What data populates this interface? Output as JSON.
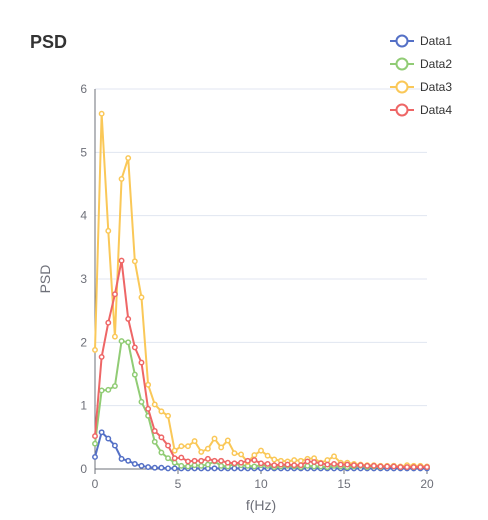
{
  "chart_data": {
    "type": "line",
    "title": "PSD",
    "xlabel": "f(Hz)",
    "ylabel": "PSD",
    "xlim": [
      0,
      20
    ],
    "ylim": [
      0,
      6
    ],
    "xticks": [
      "0",
      "5",
      "10",
      "15",
      "20"
    ],
    "yticks": [
      "0",
      "1",
      "2",
      "3",
      "4",
      "5",
      "6"
    ],
    "grid": true,
    "legend_position": "top-right",
    "series": [
      {
        "name": "Data1",
        "color": "#5470c6",
        "x": [
          0,
          0.4,
          0.8,
          1.2,
          1.6,
          2.0,
          2.4,
          2.8,
          3.2,
          3.6,
          4.0,
          4.4,
          4.8,
          5.2,
          5.6,
          6.0,
          6.4,
          6.8,
          7.2,
          7.6,
          8.0,
          8.4,
          8.8,
          9.2,
          9.6,
          10.0,
          10.4,
          10.8,
          11.2,
          11.6,
          12.0,
          12.4,
          12.8,
          13.2,
          13.6,
          14.0,
          14.4,
          14.8,
          15.2,
          15.6,
          16.0,
          16.4,
          16.8,
          17.2,
          17.6,
          18.0,
          18.4,
          18.8,
          19.2,
          19.6,
          20.0
        ],
        "y": [
          0.19,
          0.58,
          0.48,
          0.37,
          0.16,
          0.13,
          0.08,
          0.05,
          0.03,
          0.02,
          0.02,
          0.01,
          0.01,
          0.01,
          0.01,
          0.01,
          0.01,
          0.01,
          0.01,
          0.01,
          0.01,
          0.01,
          0.01,
          0.01,
          0.01,
          0.01,
          0.01,
          0.01,
          0.01,
          0.01,
          0.01,
          0.01,
          0.01,
          0.01,
          0.01,
          0.01,
          0.01,
          0.01,
          0.01,
          0.01,
          0.01,
          0.01,
          0.01,
          0.01,
          0.01,
          0.01,
          0.01,
          0.01,
          0.01,
          0.01,
          0.01
        ]
      },
      {
        "name": "Data2",
        "color": "#91cc75",
        "x": [
          0,
          0.4,
          0.8,
          1.2,
          1.6,
          2.0,
          2.4,
          2.8,
          3.2,
          3.6,
          4.0,
          4.4,
          4.8,
          5.2,
          5.6,
          6.0,
          6.4,
          6.8,
          7.2,
          7.6,
          8.0,
          8.4,
          8.8,
          9.2,
          9.6,
          10.0,
          10.4,
          10.8,
          11.2,
          11.6,
          12.0,
          12.4,
          12.8,
          13.2,
          13.6,
          14.0,
          14.4,
          14.8,
          15.2,
          15.6,
          16.0,
          16.4,
          16.8,
          17.2,
          17.6,
          18.0,
          18.4,
          18.8,
          19.2,
          19.6,
          20.0
        ],
        "y": [
          0.4,
          1.24,
          1.25,
          1.31,
          2.02,
          2.0,
          1.49,
          1.06,
          0.84,
          0.43,
          0.26,
          0.17,
          0.1,
          0.05,
          0.04,
          0.06,
          0.05,
          0.07,
          0.12,
          0.05,
          0.04,
          0.08,
          0.06,
          0.05,
          0.04,
          0.06,
          0.05,
          0.03,
          0.04,
          0.05,
          0.04,
          0.03,
          0.05,
          0.04,
          0.04,
          0.03,
          0.05,
          0.04,
          0.03,
          0.04,
          0.05,
          0.03,
          0.04,
          0.03,
          0.04,
          0.05,
          0.03,
          0.04,
          0.03,
          0.04,
          0.03
        ]
      },
      {
        "name": "Data3",
        "color": "#fac858",
        "x": [
          0,
          0.4,
          0.8,
          1.2,
          1.6,
          2.0,
          2.4,
          2.8,
          3.2,
          3.6,
          4.0,
          4.4,
          4.8,
          5.2,
          5.6,
          6.0,
          6.4,
          6.8,
          7.2,
          7.6,
          8.0,
          8.4,
          8.8,
          9.2,
          9.6,
          10.0,
          10.4,
          10.8,
          11.2,
          11.6,
          12.0,
          12.4,
          12.8,
          13.2,
          13.6,
          14.0,
          14.4,
          14.8,
          15.2,
          15.6,
          16.0,
          16.4,
          16.8,
          17.2,
          17.6,
          18.0,
          18.4,
          18.8,
          19.2,
          19.6,
          20.0
        ],
        "y": [
          1.88,
          5.61,
          3.76,
          2.09,
          4.58,
          4.91,
          3.28,
          2.71,
          1.33,
          1.02,
          0.91,
          0.84,
          0.29,
          0.36,
          0.36,
          0.44,
          0.27,
          0.32,
          0.48,
          0.34,
          0.45,
          0.25,
          0.23,
          0.11,
          0.22,
          0.29,
          0.21,
          0.15,
          0.13,
          0.12,
          0.14,
          0.13,
          0.16,
          0.17,
          0.1,
          0.14,
          0.2,
          0.1,
          0.1,
          0.08,
          0.07,
          0.06,
          0.06,
          0.05,
          0.05,
          0.05,
          0.04,
          0.06,
          0.05,
          0.05,
          0.04
        ]
      },
      {
        "name": "Data4",
        "color": "#ee6666",
        "x": [
          0,
          0.4,
          0.8,
          1.2,
          1.6,
          2.0,
          2.4,
          2.8,
          3.2,
          3.6,
          4.0,
          4.4,
          4.8,
          5.2,
          5.6,
          6.0,
          6.4,
          6.8,
          7.2,
          7.6,
          8.0,
          8.4,
          8.8,
          9.2,
          9.6,
          10.0,
          10.4,
          10.8,
          11.2,
          11.6,
          12.0,
          12.4,
          12.8,
          13.2,
          13.6,
          14.0,
          14.4,
          14.8,
          15.2,
          15.6,
          16.0,
          16.4,
          16.8,
          17.2,
          17.6,
          18.0,
          18.4,
          18.8,
          19.2,
          19.6,
          20.0
        ],
        "y": [
          0.52,
          1.77,
          2.31,
          2.76,
          3.29,
          2.37,
          1.92,
          1.68,
          0.95,
          0.6,
          0.5,
          0.37,
          0.17,
          0.18,
          0.12,
          0.13,
          0.13,
          0.16,
          0.13,
          0.13,
          0.1,
          0.09,
          0.1,
          0.13,
          0.14,
          0.09,
          0.08,
          0.06,
          0.07,
          0.07,
          0.06,
          0.06,
          0.12,
          0.11,
          0.09,
          0.07,
          0.08,
          0.07,
          0.07,
          0.06,
          0.06,
          0.05,
          0.05,
          0.04,
          0.04,
          0.04,
          0.03,
          0.03,
          0.03,
          0.03,
          0.03
        ]
      }
    ]
  }
}
